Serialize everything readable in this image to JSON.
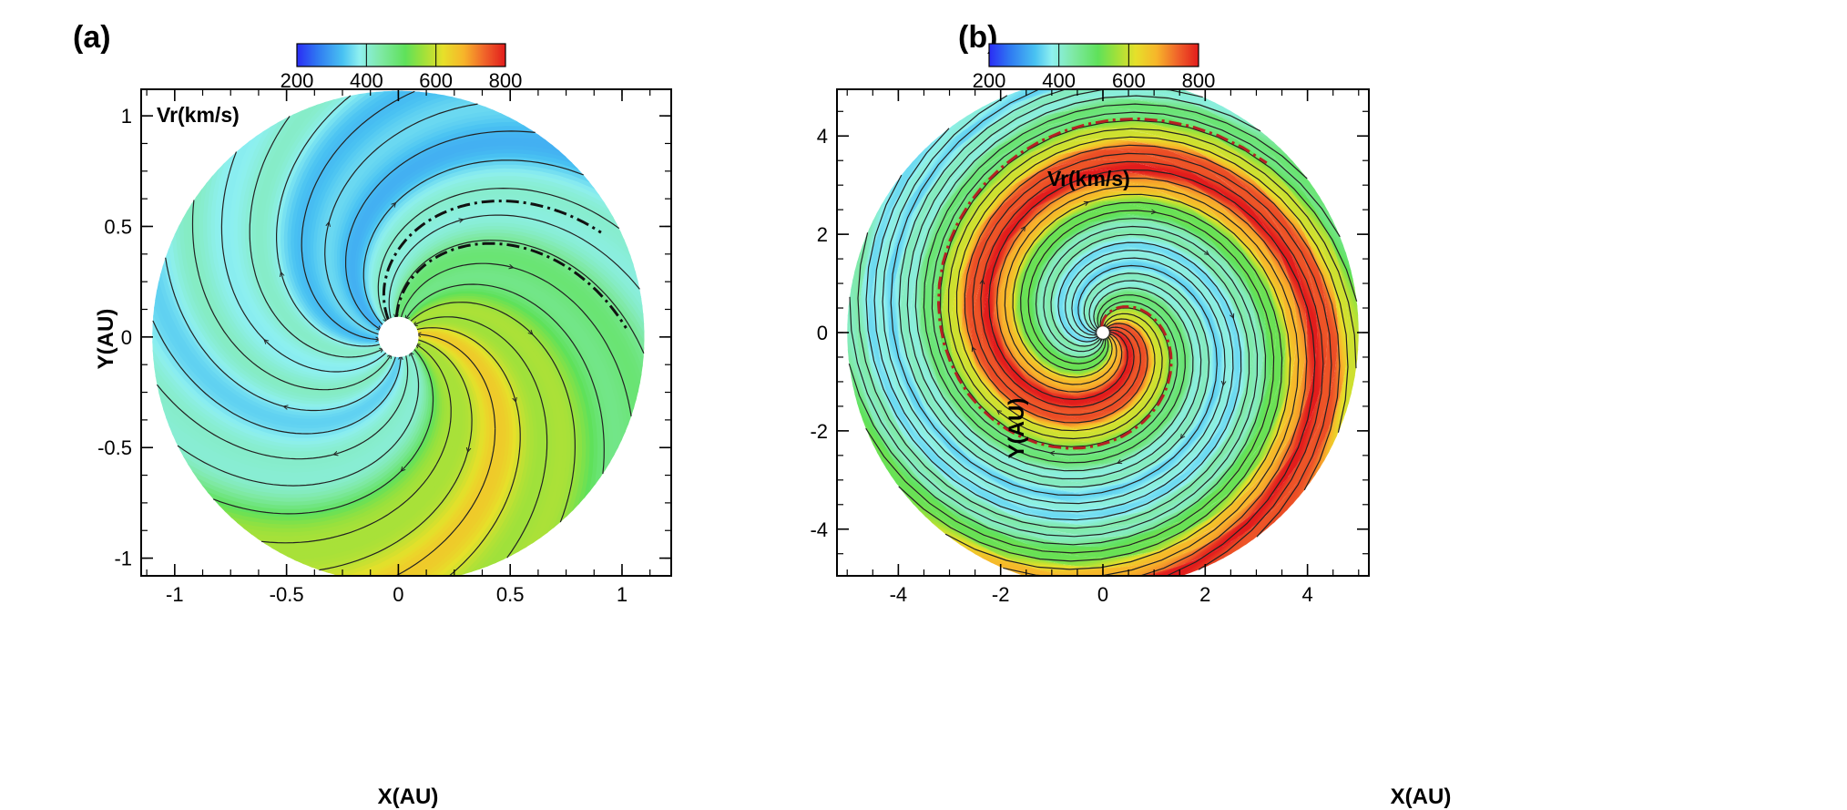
{
  "colormap": {
    "stops": [
      [
        0.0,
        "#2a2cf5"
      ],
      [
        0.1,
        "#2f7af2"
      ],
      [
        0.22,
        "#49c2f2"
      ],
      [
        0.3,
        "#8ef0f0"
      ],
      [
        0.4,
        "#7fe9a6"
      ],
      [
        0.52,
        "#5fe15a"
      ],
      [
        0.6,
        "#9ae13c"
      ],
      [
        0.7,
        "#e6e02a"
      ],
      [
        0.8,
        "#f7b52a"
      ],
      [
        0.9,
        "#f0642a"
      ],
      [
        1.0,
        "#e21c1c"
      ]
    ]
  },
  "chart_data": [
    {
      "type": "heatmap",
      "panel_label": "(a)",
      "variable_label": "Vr(km/s)",
      "xlabel": "X(AU)",
      "ylabel": "Y(AU)",
      "xlim": [
        -1.15,
        1.22
      ],
      "ylim": [
        -1.08,
        1.12
      ],
      "xticks": [
        -1,
        -0.5,
        0,
        0.5,
        1
      ],
      "yticks": [
        -1,
        -0.5,
        0,
        0.5,
        1
      ],
      "colorbar": {
        "min": 200,
        "max": 800,
        "ticks": [
          200,
          400,
          600,
          800
        ]
      },
      "domain": {
        "inner_radius": 0.09,
        "outer_radius": 1.1
      },
      "spiral_twist_turns": 0.28,
      "speed_field": {
        "base": 470,
        "lobes": [
          {
            "angle_deg": 0,
            "amplitude": 175
          },
          {
            "angle_deg": 165,
            "amplitude": -140
          },
          {
            "angle_deg": 290,
            "amplitude": -120
          }
        ]
      },
      "current_sheet_angles_deg": [
        95,
        120
      ],
      "current_sheet_color": "#111111"
    },
    {
      "type": "heatmap",
      "panel_label": "(b)",
      "variable_label": "Vr(km/s)",
      "xlabel": "X(AU)",
      "ylabel": "Y(AU)",
      "xlim": [
        -5.2,
        5.2
      ],
      "ylim": [
        -4.95,
        4.95
      ],
      "xticks": [
        -4,
        -2,
        0,
        2,
        4
      ],
      "yticks": [
        -4,
        -2,
        0,
        2,
        4
      ],
      "colorbar": {
        "min": 200,
        "max": 800,
        "ticks": [
          200,
          400,
          600,
          800
        ]
      },
      "domain": {
        "inner_radius": 0.12,
        "outer_radius": 5.0
      },
      "spiral_twist_turns": 1.25,
      "speed_field": {
        "base": 520,
        "bands": [
          {
            "angle_deg": 20,
            "amplitude": 270,
            "width_deg": 42
          },
          {
            "angle_deg": 205,
            "amplitude": -150,
            "width_deg": 60
          }
        ]
      },
      "current_sheet_angles_deg": [
        100
      ],
      "current_sheet_color": "#b52222"
    }
  ]
}
